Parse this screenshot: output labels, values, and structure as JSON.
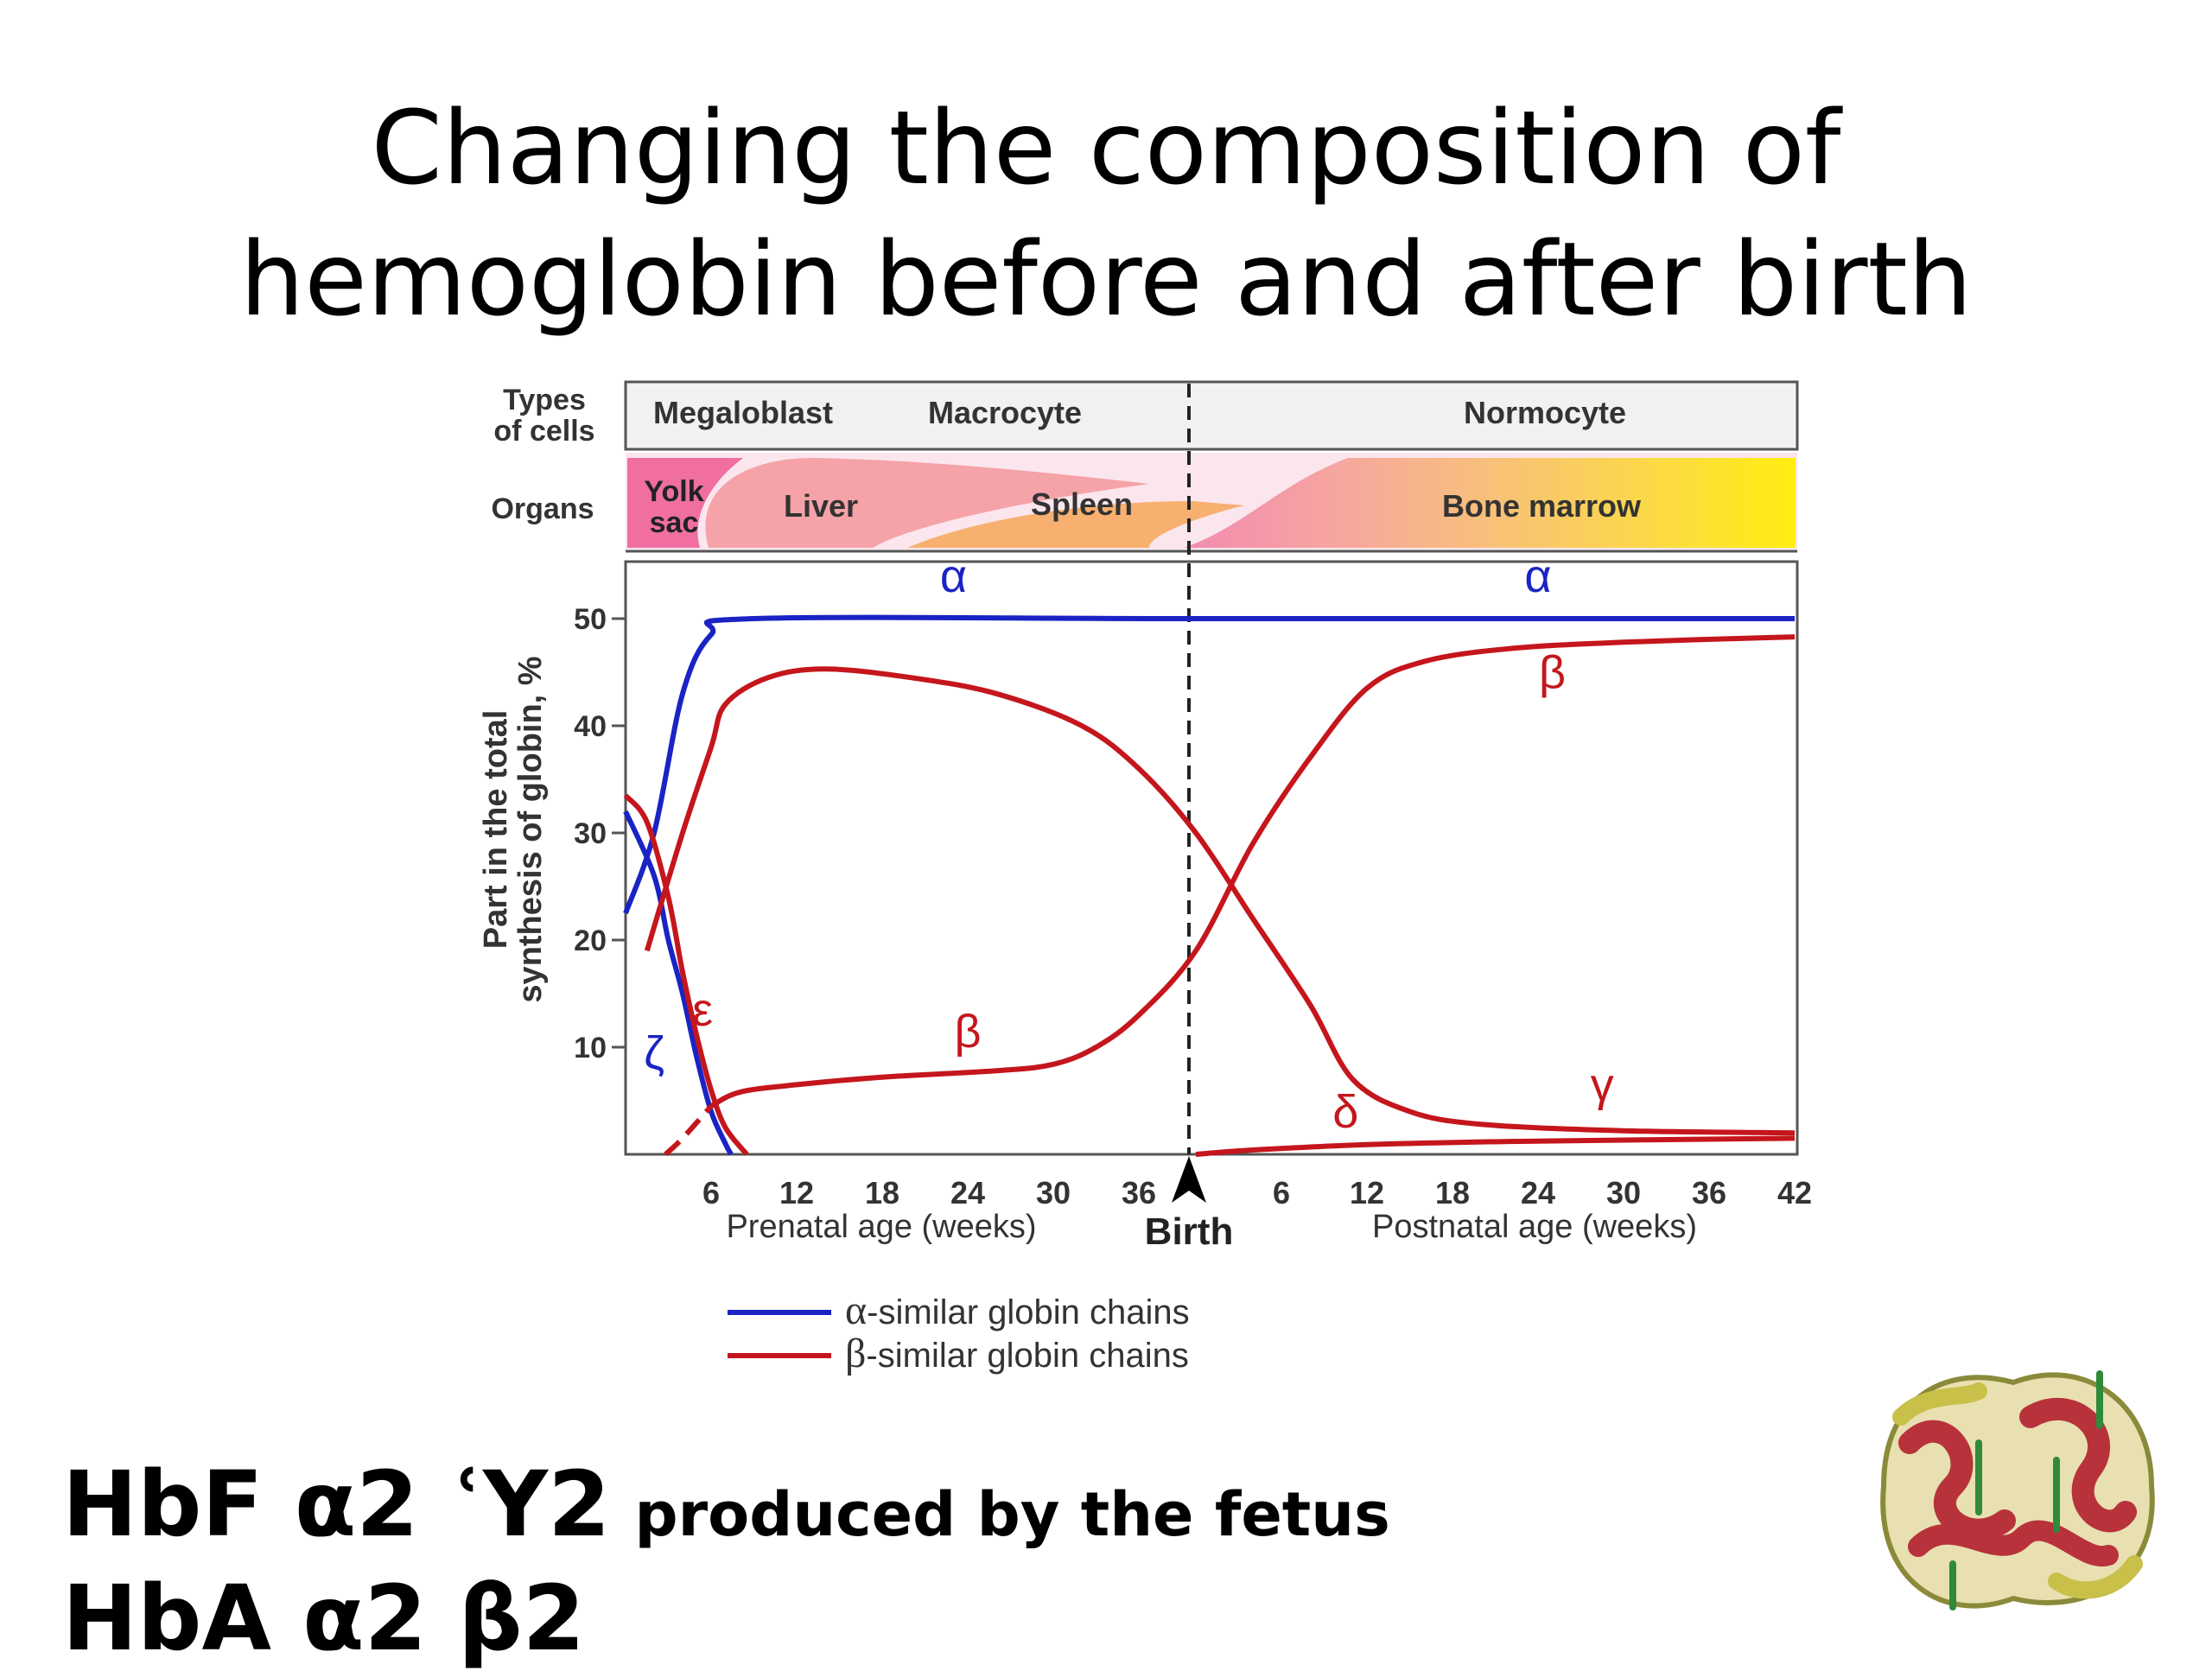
{
  "slide": {
    "title_line1": "Changing the composition of",
    "title_line2": "hemoglobin before and after birth",
    "hbf_main": "HbF α2 ʿY2",
    "hbf_note": "produced by the fetus",
    "hba": "HbA α2 β2"
  },
  "colors": {
    "alpha": "#1a23c4",
    "beta": "#c4161c"
  },
  "chart_data": {
    "type": "line",
    "cell_types_label": [
      "Types",
      "of cells"
    ],
    "cell_types": [
      "Megaloblast",
      "Macrocyte",
      "Normocyte"
    ],
    "organs_label": "Organs",
    "organs": [
      "Yolk",
      "sac",
      "Liver",
      "Spleen",
      "Bone marrow"
    ],
    "ylabel_line1": "Part in the total",
    "ylabel_line2": "synthesis of globin, %",
    "ylim": [
      0,
      55
    ],
    "yticks": [
      "10",
      "20",
      "30",
      "40",
      "50"
    ],
    "xlim": [
      0,
      82
    ],
    "x_ticks": [
      {
        "x": 6,
        "label": "6"
      },
      {
        "x": 12,
        "label": "12"
      },
      {
        "x": 18,
        "label": "18"
      },
      {
        "x": 24,
        "label": "24"
      },
      {
        "x": 30,
        "label": "30"
      },
      {
        "x": 36,
        "label": "36"
      },
      {
        "x": 46,
        "label": "6"
      },
      {
        "x": 52,
        "label": "12"
      },
      {
        "x": 58,
        "label": "18"
      },
      {
        "x": 64,
        "label": "24"
      },
      {
        "x": 70,
        "label": "30"
      },
      {
        "x": 76,
        "label": "36"
      },
      {
        "x": 82,
        "label": "42"
      }
    ],
    "birth_x": 40,
    "birth_label": "Birth",
    "prenatal_label": "Prenatal age (weeks)",
    "postnatal_label": "Postnatal age (weeks)",
    "series": [
      {
        "name": "α",
        "group": "alpha",
        "points": [
          [
            0,
            22.5
          ],
          [
            2,
            30
          ],
          [
            4,
            43
          ],
          [
            6,
            48.5
          ],
          [
            9,
            50
          ],
          [
            40,
            50
          ],
          [
            82,
            50
          ]
        ]
      },
      {
        "name": "ζ",
        "group": "alpha",
        "points": [
          [
            0,
            32
          ],
          [
            2,
            26
          ],
          [
            3,
            20
          ],
          [
            4,
            15
          ],
          [
            5,
            9
          ],
          [
            6,
            4
          ],
          [
            7,
            1
          ],
          [
            7.4,
            0
          ]
        ]
      },
      {
        "name": "ε",
        "group": "beta",
        "points": [
          [
            0,
            33.5
          ],
          [
            1.5,
            31
          ],
          [
            3,
            24
          ],
          [
            4,
            17
          ],
          [
            5,
            11
          ],
          [
            6,
            6
          ],
          [
            7,
            2.5
          ],
          [
            8.5,
            0
          ]
        ]
      },
      {
        "name": "γ",
        "group": "beta",
        "points": [
          [
            1.5,
            19
          ],
          [
            4,
            30
          ],
          [
            6,
            38
          ],
          [
            7,
            42
          ],
          [
            10,
            44.5
          ],
          [
            14,
            45.3
          ],
          [
            20,
            44.5
          ],
          [
            26,
            43
          ],
          [
            32,
            40
          ],
          [
            36,
            36
          ],
          [
            40,
            30
          ],
          [
            44,
            22
          ],
          [
            48,
            14
          ],
          [
            51,
            7
          ],
          [
            55,
            4
          ],
          [
            60,
            2.8
          ],
          [
            70,
            2.2
          ],
          [
            82,
            2
          ]
        ]
      },
      {
        "name": "β",
        "group": "beta",
        "dashed_until": 6,
        "points": [
          [
            2.8,
            0
          ],
          [
            4,
            1.5
          ],
          [
            6,
            4.5
          ],
          [
            8,
            5.8
          ],
          [
            12,
            6.5
          ],
          [
            18,
            7.2
          ],
          [
            26,
            7.8
          ],
          [
            30,
            8.4
          ],
          [
            33,
            10
          ],
          [
            36,
            13
          ],
          [
            40,
            19
          ],
          [
            44,
            29
          ],
          [
            48,
            37
          ],
          [
            52,
            43.5
          ],
          [
            56,
            46
          ],
          [
            62,
            47.2
          ],
          [
            70,
            47.8
          ],
          [
            82,
            48.3
          ]
        ]
      },
      {
        "name": "δ",
        "group": "beta",
        "points": [
          [
            40,
            0
          ],
          [
            44,
            0.4
          ],
          [
            52,
            0.9
          ],
          [
            62,
            1.2
          ],
          [
            82,
            1.5
          ]
        ]
      }
    ],
    "series_labels": [
      {
        "text": "α",
        "group": "alpha",
        "x": 23,
        "y": 52.5
      },
      {
        "text": "α",
        "group": "alpha",
        "x": 64,
        "y": 52.5
      },
      {
        "text": "ζ",
        "group": "alpha",
        "x": 2,
        "y": 8
      },
      {
        "text": "ε",
        "group": "beta",
        "x": 5.4,
        "y": 12
      },
      {
        "text": "β",
        "group": "beta",
        "x": 24,
        "y": 10
      },
      {
        "text": "β",
        "group": "beta",
        "x": 65,
        "y": 43.5
      },
      {
        "text": "δ",
        "group": "beta",
        "x": 50.5,
        "y": 2.5
      },
      {
        "text": "γ",
        "group": "beta",
        "x": 68.5,
        "y": 5
      }
    ],
    "legend": [
      {
        "symbol": "α",
        "text": "-similar globin chains",
        "group": "alpha"
      },
      {
        "symbol": "β",
        "text": "-similar globin chains",
        "group": "beta"
      }
    ],
    "grid": false,
    "legend_position": "below"
  }
}
